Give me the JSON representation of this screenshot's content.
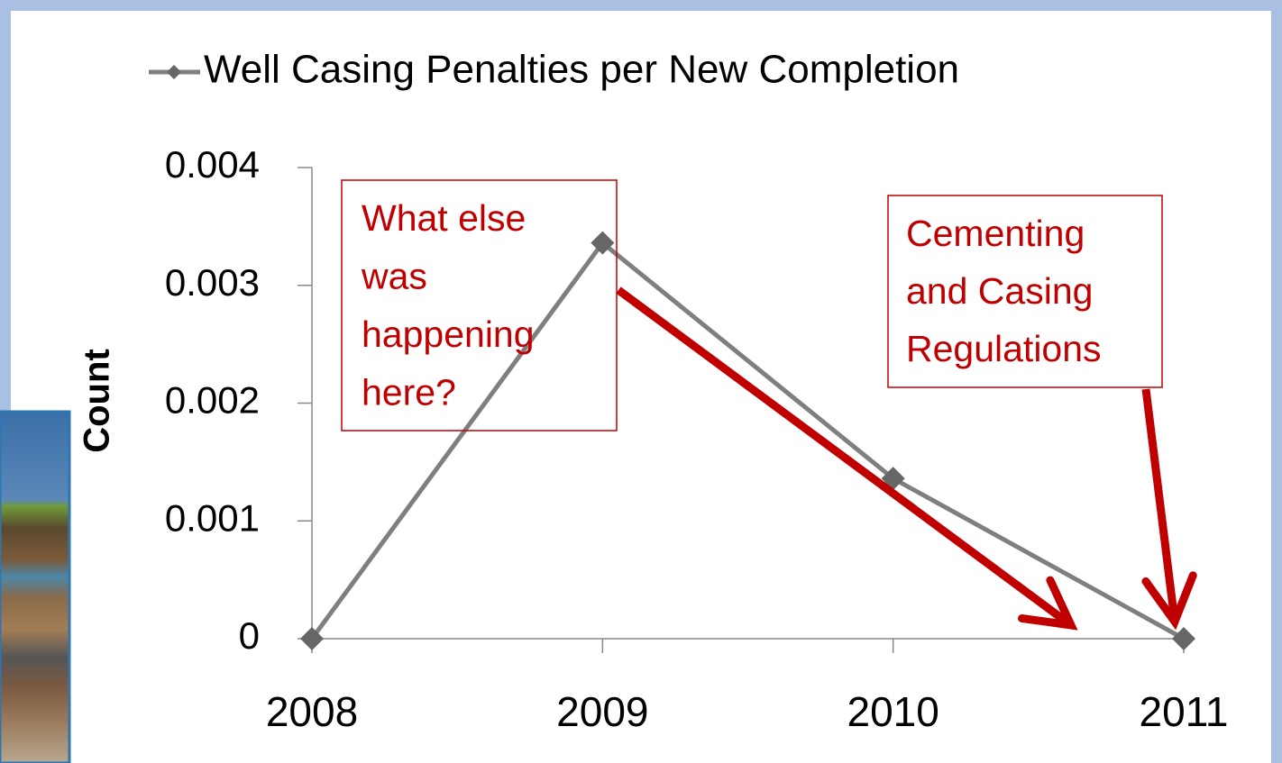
{
  "chart_data": {
    "type": "line",
    "categories": [
      "2008",
      "2009",
      "2010",
      "2011"
    ],
    "series": [
      {
        "name": "Well Casing Penalties per New Completion",
        "color": "#7f7f7f",
        "marker_color": "#666666",
        "values": [
          0,
          0.00336,
          0.00136,
          0
        ]
      }
    ],
    "ylabel": "Count",
    "ylim": [
      0,
      0.004
    ],
    "yticks": [
      0,
      0.001,
      0.002,
      0.003,
      0.004
    ],
    "legend": "top",
    "annotations": [
      {
        "lines": [
          "What else",
          "was",
          "happening",
          "here?"
        ],
        "color": "#c00000"
      },
      {
        "lines": [
          "Cementing",
          "and Casing",
          "Regulations"
        ],
        "color": "#c00000"
      }
    ]
  }
}
